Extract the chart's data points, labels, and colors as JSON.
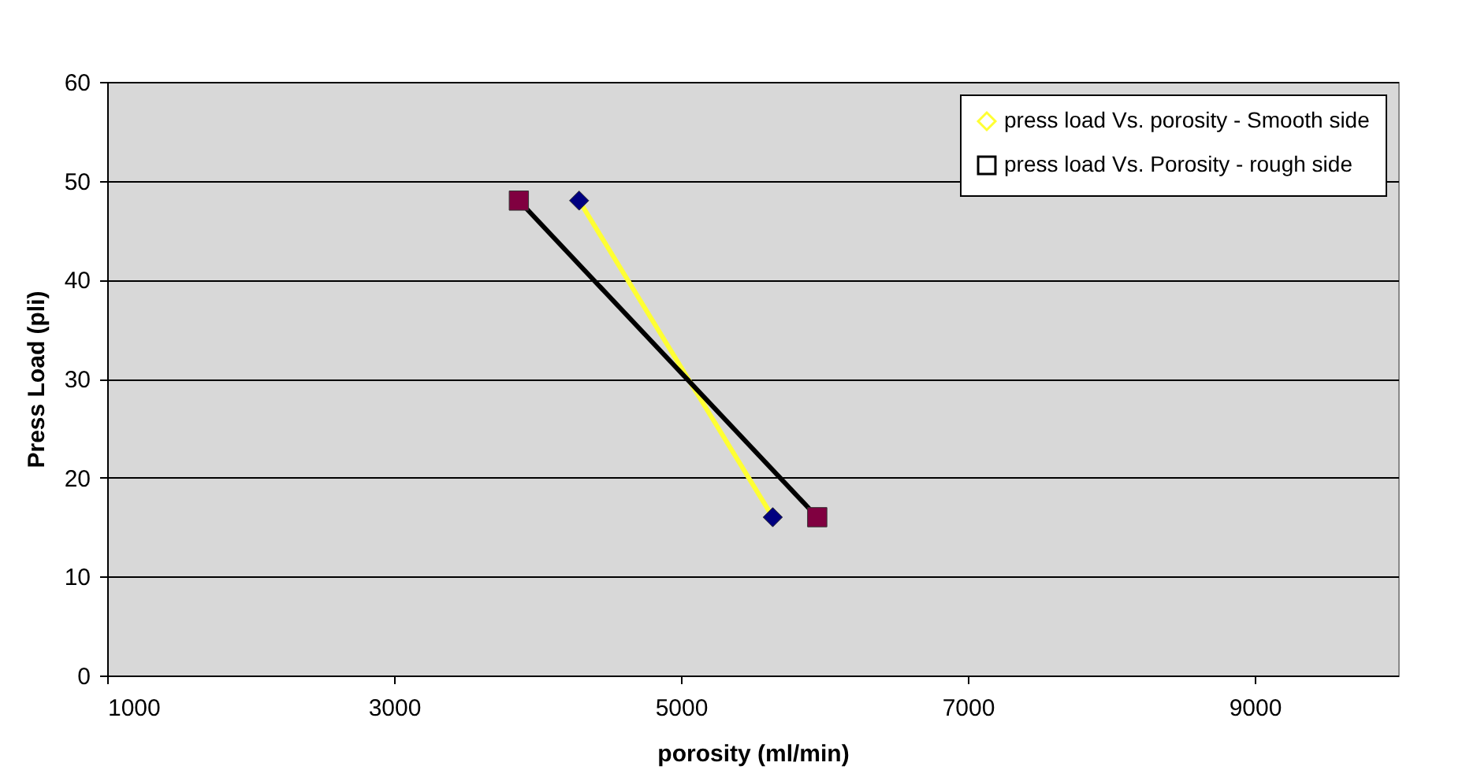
{
  "chart_data": {
    "type": "line",
    "xlabel": "porosity (ml/min)",
    "ylabel": "Press Load (pli)",
    "xlim": [
      1000,
      10000
    ],
    "xticks": [
      1000,
      3000,
      5000,
      7000,
      9000
    ],
    "ylim": [
      0,
      60
    ],
    "yticks": [
      0,
      10,
      20,
      30,
      40,
      50,
      60
    ],
    "grid": "y",
    "legend": "top right",
    "line_style": "solid",
    "series": [
      {
        "name": "press load Vs. porosity - Smooth side",
        "color": "#ffff33",
        "colors": [
          "#000080",
          "#000080"
        ],
        "marker": "diamond",
        "x": [
          4290,
          5640
        ],
        "values": [
          48,
          16
        ]
      },
      {
        "name": "press load Vs. Porosity - rough side",
        "color": "#000000",
        "colors": [
          "#800040",
          "#800040"
        ],
        "marker": "square",
        "x": [
          3870,
          5950
        ],
        "values": [
          48,
          16
        ]
      }
    ]
  }
}
